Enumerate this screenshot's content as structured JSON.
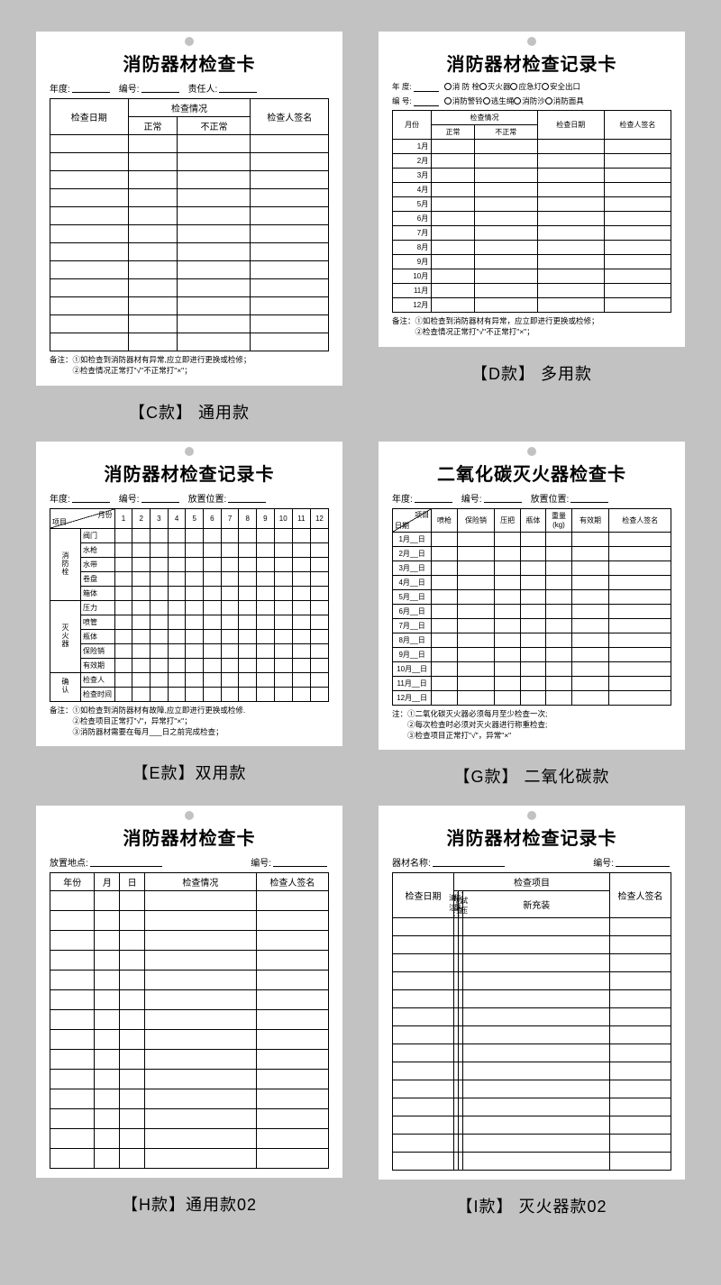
{
  "bg": "#c2c2c2",
  "cards": {
    "C": {
      "title": "消防器材检查卡",
      "meta": [
        "年度:",
        "编号:",
        "责任人:"
      ],
      "headers": [
        "检查日期",
        "检查情况",
        "正常",
        "不正常",
        "检查人签名"
      ],
      "rows": 12,
      "notes": "备注：①如检查到消防器材有异常,应立即进行更换或检修；\n　　　②检查情况正常打\"√\"不正常打\"×\"；",
      "caption": "【C款】 通用款"
    },
    "D": {
      "title": "消防器材检查记录卡",
      "meta1": [
        "年 度:"
      ],
      "checkboxes": [
        "消 防 栓",
        "灭火器",
        "应急灯",
        "安全出口",
        "消防警铃",
        "逃生绳",
        "消防沙",
        "消防面具"
      ],
      "meta2": "编 号:",
      "headers": [
        "月份",
        "检查情况",
        "正常",
        "不正常",
        "检查日期",
        "检查人签名"
      ],
      "months": [
        "1月",
        "2月",
        "3月",
        "4月",
        "5月",
        "6月",
        "7月",
        "8月",
        "9月",
        "10月",
        "11月",
        "12月"
      ],
      "notes": "备注：①如检查到消防器材有异常，应立即进行更换或检修；\n　　　②检查情况正常打\"√\"不正常打\"×\"；",
      "caption": "【D款】 多用款"
    },
    "E": {
      "title": "消防器材检查记录卡",
      "meta": [
        "年度:",
        "编号:",
        "放置位置:"
      ],
      "diag": {
        "tr": "月份",
        "bl": "项目"
      },
      "months": [
        "1",
        "2",
        "3",
        "4",
        "5",
        "6",
        "7",
        "8",
        "9",
        "10",
        "11",
        "12"
      ],
      "groups": [
        {
          "name": "消防栓",
          "items": [
            "阀门",
            "水枪",
            "水带",
            "卷盘",
            "箱体"
          ]
        },
        {
          "name": "灭火器",
          "items": [
            "压力",
            "喷管",
            "瓶体",
            "保险销",
            "有效期"
          ]
        },
        {
          "name": "确认",
          "items": [
            "检查人",
            "检查时间"
          ]
        }
      ],
      "notes": "备注：①如检查到消防器材有故障,应立即进行更换或检修.\n　　　②检查项目正常打\"√\"，异常打\"×\"；\n　　　③消防器材需要在每月___日之前完成检查；",
      "caption": "【E款】双用款"
    },
    "G": {
      "title": "二氧化碳灭火器检查卡",
      "meta": [
        "年度:",
        "编号:",
        "放置位置:"
      ],
      "diag": {
        "tr": "项目",
        "bl": "日期"
      },
      "cols": [
        "喷枪",
        "保险销",
        "压把",
        "瓶体",
        "重量(kg)",
        "有效期",
        "检查人签名"
      ],
      "months": [
        "1月__日",
        "2月__日",
        "3月__日",
        "4月__日",
        "5月__日",
        "6月__日",
        "7月__日",
        "8月__日",
        "9月__日",
        "10月__日",
        "11月__日",
        "12月__日"
      ],
      "notes": "注：①二氧化碳灭火器必须每月至少检查一次;\n　　②每次检查时必须对灭火器进行称重检查;\n　　③检查项目正常打\"√\"，异常\"×\"",
      "caption": "【G款】 二氧化碳款"
    },
    "H": {
      "title": "消防器材检查卡",
      "meta": [
        "放置地点:",
        "编号:"
      ],
      "headers": [
        "年份",
        "月",
        "日",
        "检查情况",
        "检查人签名"
      ],
      "rows": 14,
      "caption": "【H款】通用款02"
    },
    "I": {
      "title": "消防器材检查记录卡",
      "meta": [
        "器材名称:",
        "编号:"
      ],
      "headers": [
        "检查日期",
        "检查项目",
        "清洁检查",
        "称重试压",
        "新充装",
        "检查人签名"
      ],
      "rows": 14,
      "caption": "【I款】 灭火器款02"
    }
  }
}
